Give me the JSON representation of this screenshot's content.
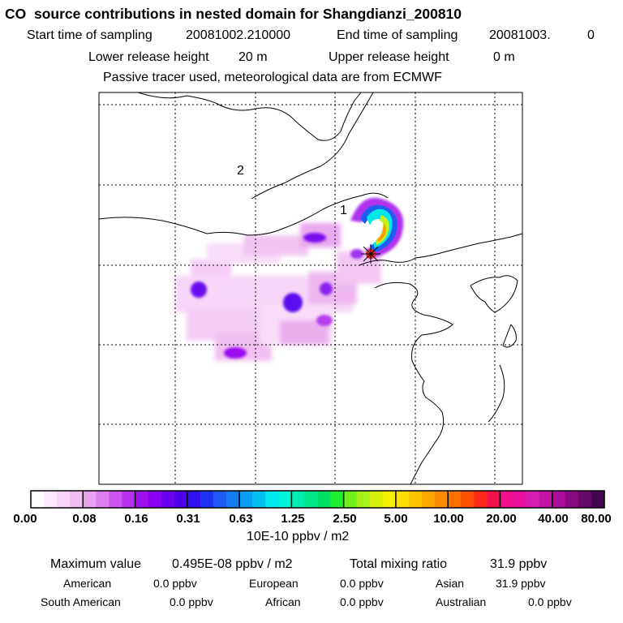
{
  "header": {
    "title": "CO  source contributions in nested domain for Shangdianzi_200810",
    "start_label": "Start time of sampling",
    "start_value": "20081002.210000",
    "end_label": "End time of sampling",
    "end_value": "20081003.",
    "end_suffix": "0",
    "lower_label": "Lower release height",
    "lower_value": "20 m",
    "upper_label": "Upper release height",
    "upper_value": "0 m",
    "tracer_note": "Passive tracer used, meteorological data are from ECMWF"
  },
  "map": {
    "domain_labels": [
      "1",
      "2"
    ],
    "receptor_marker": "receptor-star-icon"
  },
  "colorbar": {
    "tick_labels": [
      "0.00",
      "0.08",
      "0.16",
      "0.31",
      "0.63",
      "1.25",
      "2.50",
      "5.00",
      "10.00",
      "20.00",
      "40.00",
      "80.00"
    ],
    "unit": "10E-10 ppbv / m2",
    "colors": [
      "#ffffff",
      "#fce8fc",
      "#f8d4f8",
      "#f2bef2",
      "#e9a2ef",
      "#dd7fef",
      "#cc55ef",
      "#b733ef",
      "#a010ee",
      "#8a00ee",
      "#6a00ee",
      "#4c00ea",
      "#3110ee",
      "#1f33f0",
      "#1d5aef",
      "#137cf0",
      "#0a9ef2",
      "#00bff2",
      "#00e8f0",
      "#00f6d8",
      "#00efb0",
      "#00e48a",
      "#00e060",
      "#1ef030",
      "#6ef01a",
      "#a8f01a",
      "#d8f00a",
      "#f6f000",
      "#fde000",
      "#fdc500",
      "#fda800",
      "#fd8c00",
      "#fd7000",
      "#fd5000",
      "#fd2c1a",
      "#f01248",
      "#f0108a",
      "#e8109c",
      "#d61cb0",
      "#c412a6",
      "#aa0e9a",
      "#880a80",
      "#66086a",
      "#440650"
    ]
  },
  "stats": {
    "max_label": "Maximum value",
    "max_value": "0.495E-08 ppbv / m2",
    "total_label": "Total mixing ratio",
    "total_value": "31.9 ppbv",
    "regions": [
      {
        "name": "American",
        "value": "0.0 ppbv"
      },
      {
        "name": "European",
        "value": "0.0 ppbv"
      },
      {
        "name": "Asian",
        "value": "31.9 ppbv"
      },
      {
        "name": "South American",
        "value": "0.0 ppbv"
      },
      {
        "name": "African",
        "value": "0.0 ppbv"
      },
      {
        "name": "Australian",
        "value": "0.0 ppbv"
      }
    ]
  }
}
